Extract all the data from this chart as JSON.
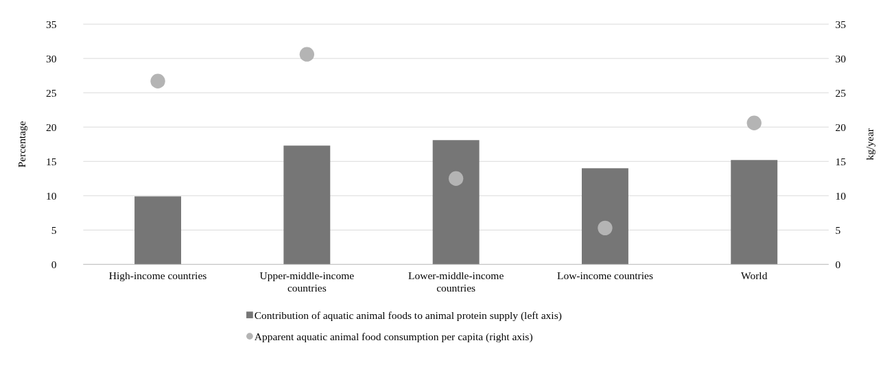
{
  "chart_data": {
    "type": "bar",
    "ylabel": "Percentage",
    "y2label": "kg/year",
    "categories": [
      "High-income countries",
      "Upper-middle-income countries",
      "Lower-middle-income countries",
      "Low-income countries",
      "World"
    ],
    "series": [
      {
        "name": "Contribution of aquatic animal foods to animal protein supply (left axis)",
        "color": "#767676",
        "values": [
          9.9,
          17.3,
          18.1,
          14.0,
          15.2
        ]
      },
      {
        "name": "Apparent aquatic animal food consumption per capita (right axis)",
        "type": "scatter",
        "axis": "y2",
        "marker": "circle",
        "color": "#b4b4b4",
        "values": [
          26.7,
          30.6,
          12.5,
          5.3,
          20.6
        ]
      }
    ],
    "ylim": [
      0,
      35
    ],
    "yticks": [
      0,
      5,
      10,
      15,
      20,
      25,
      30,
      35
    ],
    "y2lim": [
      0,
      35
    ],
    "y2ticks": [
      0,
      5,
      10,
      15,
      20,
      25,
      30,
      35
    ],
    "grid": "y",
    "legend": "bottom"
  }
}
